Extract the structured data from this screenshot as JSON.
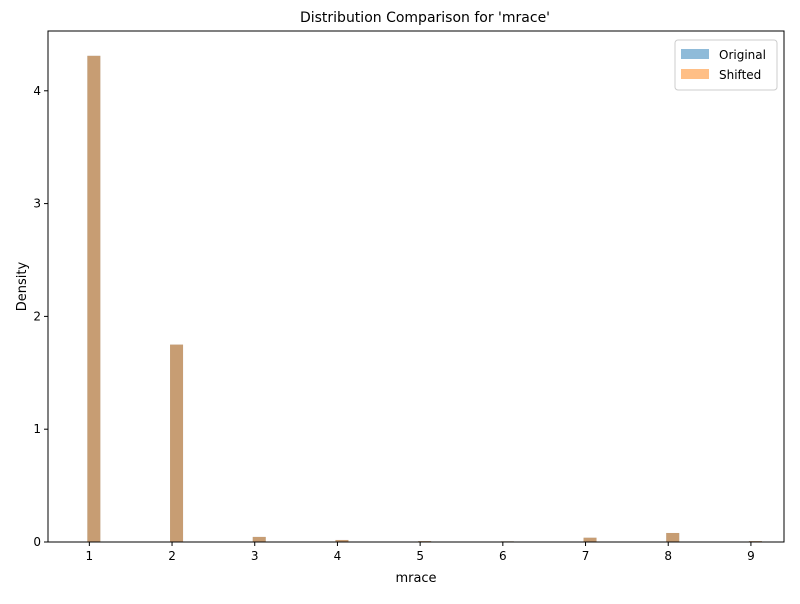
{
  "chart_data": {
    "type": "bar",
    "title": "Distribution Comparison for 'mrace'",
    "xlabel": "mrace",
    "ylabel": "Density",
    "x": [
      1,
      2,
      3,
      4,
      5,
      6,
      7,
      8,
      9
    ],
    "xticks": [
      "1",
      "2",
      "3",
      "4",
      "5",
      "6",
      "7",
      "8",
      "9"
    ],
    "yticks": [
      "0",
      "1",
      "2",
      "3",
      "4"
    ],
    "xlim": [
      0.5,
      9.4
    ],
    "ylim": [
      0,
      4.53
    ],
    "grid": false,
    "legend_position": "top-right",
    "series": [
      {
        "name": "Original",
        "color": "#1f77b4",
        "opacity": 0.5,
        "values": [
          4.31,
          1.75,
          0.045,
          0.018,
          0.008,
          0.006,
          0.038,
          0.08,
          0.008
        ]
      },
      {
        "name": "Shifted",
        "color": "#ff7f0e",
        "opacity": 0.5,
        "values": [
          4.31,
          1.75,
          0.045,
          0.018,
          0.008,
          0.006,
          0.038,
          0.08,
          0.008
        ]
      }
    ]
  }
}
